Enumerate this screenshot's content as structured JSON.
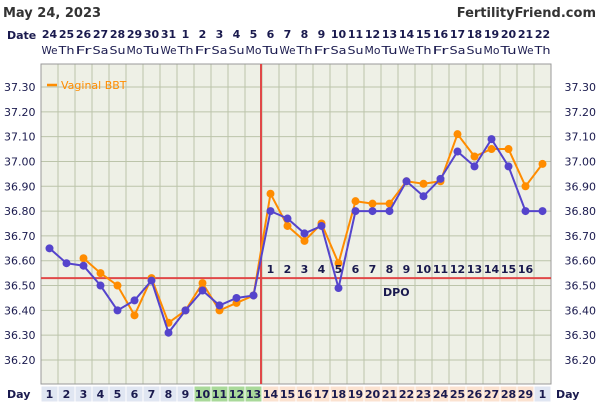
{
  "header": {
    "date": "May 24, 2023",
    "site": "FertilityFriend.com",
    "date_row_label": "Date",
    "day_row_label": "Day",
    "dpo_label": "DPO"
  },
  "chart_data": {
    "type": "line",
    "title": "",
    "xlabel": "Day",
    "ylabel": "",
    "ylim": [
      36.15,
      37.35
    ],
    "y_ticks": [
      "37.30",
      "37.20",
      "37.10",
      "37.00",
      "36.90",
      "36.80",
      "36.70",
      "36.60",
      "36.50",
      "36.40",
      "36.30",
      "36.20"
    ],
    "dates": [
      "24",
      "25",
      "26",
      "27",
      "28",
      "29",
      "30",
      "31",
      "1",
      "2",
      "3",
      "4",
      "5",
      "6",
      "7",
      "8",
      "9",
      "10",
      "11",
      "12",
      "13",
      "14",
      "15",
      "16",
      "17",
      "18",
      "19",
      "20",
      "21",
      "22"
    ],
    "weekdays": [
      "We",
      "Th",
      "Fr",
      "Sa",
      "Su",
      "Mo",
      "Tu",
      "We",
      "Th",
      "Fr",
      "Sa",
      "Su",
      "Mo",
      "Tu",
      "We",
      "Th",
      "Fr",
      "Sa",
      "Su",
      "Mo",
      "Tu",
      "We",
      "Th",
      "Fr",
      "Sa",
      "Su",
      "Mo",
      "Tu",
      "We",
      "Th"
    ],
    "cycle_days": [
      "1",
      "2",
      "3",
      "4",
      "5",
      "6",
      "7",
      "8",
      "9",
      "10",
      "11",
      "12",
      "13",
      "14",
      "15",
      "16",
      "17",
      "18",
      "19",
      "20",
      "21",
      "22",
      "23",
      "24",
      "25",
      "26",
      "27",
      "28",
      "29",
      "1"
    ],
    "day_cell_colors": [
      "#e0e6f2",
      "#e0e6f2",
      "#e0e6f2",
      "#e0e6f2",
      "#e0e6f2",
      "#e0e6f2",
      "#e0e6f2",
      "#e0e6f2",
      "#e0e6f2",
      "#a9d99a",
      "#a9d99a",
      "#a9d99a",
      "#a9d99a",
      "#fbe2d0",
      "#fbe2d0",
      "#fbe2d0",
      "#fbe2d0",
      "#fbe2d0",
      "#fbe2d0",
      "#fbe2d0",
      "#fbe2d0",
      "#fbe2d0",
      "#fbe2d0",
      "#fbe2d0",
      "#fbe2d0",
      "#fbe2d0",
      "#fbe2d0",
      "#fbe2d0",
      "#fbe2d0",
      "#e0e6f2"
    ],
    "series": [
      {
        "name": "Vaginal BBT",
        "color": "#ff8c00",
        "values": [
          null,
          null,
          36.61,
          36.55,
          36.5,
          36.38,
          36.53,
          36.35,
          36.4,
          36.51,
          36.4,
          36.43,
          36.46,
          36.87,
          36.74,
          36.68,
          36.75,
          36.59,
          36.84,
          36.83,
          36.83,
          36.92,
          36.91,
          36.92,
          37.11,
          37.02,
          37.05,
          37.05,
          36.9,
          36.99
        ]
      },
      {
        "color": "#5544cc",
        "values": [
          36.65,
          36.59,
          36.58,
          36.5,
          36.4,
          36.44,
          36.52,
          36.31,
          36.4,
          36.48,
          36.42,
          36.45,
          36.46,
          36.8,
          36.77,
          36.71,
          36.74,
          36.49,
          36.8,
          36.8,
          36.8,
          36.92,
          36.86,
          36.93,
          37.04,
          36.98,
          37.09,
          36.98,
          36.8,
          36.8
        ]
      }
    ],
    "coverline": 36.53,
    "ovulation_day": "13",
    "dpo": [
      "1",
      "2",
      "3",
      "4",
      "5",
      "6",
      "7",
      "8",
      "9",
      "10",
      "11",
      "12",
      "13",
      "14",
      "15",
      "16"
    ],
    "legend_position": "top-left",
    "grid": true
  },
  "colors": {
    "background": "#ffffff",
    "plot_background": "#eef0e6",
    "grid": "#bcc4aa",
    "coverline": "#e04848",
    "ovulation_line": "#e04848",
    "label_text": "#1a1a4e"
  }
}
